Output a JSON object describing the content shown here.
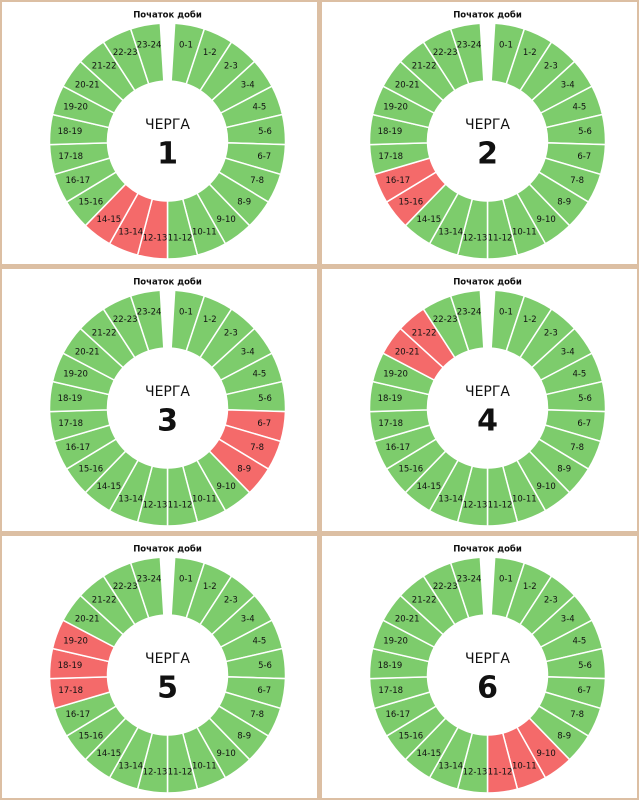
{
  "chart_data": [
    {
      "type": "donut",
      "top_label": "Початок доби",
      "title": "ЧЕРГА",
      "number": 1,
      "categories": [
        "0-1",
        "1-2",
        "2-3",
        "3-4",
        "4-5",
        "5-6",
        "6-7",
        "7-8",
        "8-9",
        "9-10",
        "10-11",
        "11-12",
        "12-13",
        "13-14",
        "14-15",
        "15-16",
        "16-17",
        "17-18",
        "18-19",
        "19-20",
        "20-21",
        "21-22",
        "22-23",
        "23-24"
      ],
      "values": [
        1,
        1,
        1,
        1,
        1,
        1,
        1,
        1,
        1,
        1,
        1,
        1,
        1,
        1,
        1,
        1,
        1,
        1,
        1,
        1,
        1,
        1,
        1,
        1
      ],
      "colors": [
        "#7dcc6c",
        "#7dcc6c",
        "#7dcc6c",
        "#7dcc6c",
        "#7dcc6c",
        "#7dcc6c",
        "#7dcc6c",
        "#7dcc6c",
        "#7dcc6c",
        "#7dcc6c",
        "#7dcc6c",
        "#7dcc6c",
        "#f46a6a",
        "#f46a6a",
        "#f46a6a",
        "#7dcc6c",
        "#7dcc6c",
        "#7dcc6c",
        "#7dcc6c",
        "#7dcc6c",
        "#7dcc6c",
        "#7dcc6c",
        "#7dcc6c",
        "#7dcc6c"
      ]
    },
    {
      "type": "donut",
      "top_label": "Початок доби",
      "title": "ЧЕРГА",
      "number": 2,
      "categories": [
        "0-1",
        "1-2",
        "2-3",
        "3-4",
        "4-5",
        "5-6",
        "6-7",
        "7-8",
        "8-9",
        "9-10",
        "10-11",
        "11-12",
        "12-13",
        "13-14",
        "14-15",
        "15-16",
        "16-17",
        "17-18",
        "18-19",
        "19-20",
        "20-21",
        "21-22",
        "22-23",
        "23-24"
      ],
      "values": [
        1,
        1,
        1,
        1,
        1,
        1,
        1,
        1,
        1,
        1,
        1,
        1,
        1,
        1,
        1,
        1,
        1,
        1,
        1,
        1,
        1,
        1,
        1,
        1
      ],
      "colors": [
        "#7dcc6c",
        "#7dcc6c",
        "#7dcc6c",
        "#7dcc6c",
        "#7dcc6c",
        "#7dcc6c",
        "#7dcc6c",
        "#7dcc6c",
        "#7dcc6c",
        "#7dcc6c",
        "#7dcc6c",
        "#7dcc6c",
        "#7dcc6c",
        "#7dcc6c",
        "#7dcc6c",
        "#f46a6a",
        "#f46a6a",
        "#7dcc6c",
        "#7dcc6c",
        "#7dcc6c",
        "#7dcc6c",
        "#7dcc6c",
        "#7dcc6c",
        "#7dcc6c"
      ]
    },
    {
      "type": "donut",
      "top_label": "Початок доби",
      "title": "ЧЕРГА",
      "number": 3,
      "categories": [
        "0-1",
        "1-2",
        "2-3",
        "3-4",
        "4-5",
        "5-6",
        "6-7",
        "7-8",
        "8-9",
        "9-10",
        "10-11",
        "11-12",
        "12-13",
        "13-14",
        "14-15",
        "15-16",
        "16-17",
        "17-18",
        "18-19",
        "19-20",
        "20-21",
        "21-22",
        "22-23",
        "23-24"
      ],
      "values": [
        1,
        1,
        1,
        1,
        1,
        1,
        1,
        1,
        1,
        1,
        1,
        1,
        1,
        1,
        1,
        1,
        1,
        1,
        1,
        1,
        1,
        1,
        1,
        1
      ],
      "colors": [
        "#7dcc6c",
        "#7dcc6c",
        "#7dcc6c",
        "#7dcc6c",
        "#7dcc6c",
        "#7dcc6c",
        "#f46a6a",
        "#f46a6a",
        "#f46a6a",
        "#7dcc6c",
        "#7dcc6c",
        "#7dcc6c",
        "#7dcc6c",
        "#7dcc6c",
        "#7dcc6c",
        "#7dcc6c",
        "#7dcc6c",
        "#7dcc6c",
        "#7dcc6c",
        "#7dcc6c",
        "#7dcc6c",
        "#7dcc6c",
        "#7dcc6c",
        "#7dcc6c"
      ]
    },
    {
      "type": "donut",
      "top_label": "Початок доби",
      "title": "ЧЕРГА",
      "number": 4,
      "categories": [
        "0-1",
        "1-2",
        "2-3",
        "3-4",
        "4-5",
        "5-6",
        "6-7",
        "7-8",
        "8-9",
        "9-10",
        "10-11",
        "11-12",
        "12-13",
        "13-14",
        "14-15",
        "15-16",
        "16-17",
        "17-18",
        "18-19",
        "19-20",
        "20-21",
        "21-22",
        "22-23",
        "23-24"
      ],
      "values": [
        1,
        1,
        1,
        1,
        1,
        1,
        1,
        1,
        1,
        1,
        1,
        1,
        1,
        1,
        1,
        1,
        1,
        1,
        1,
        1,
        1,
        1,
        1,
        1
      ],
      "colors": [
        "#7dcc6c",
        "#7dcc6c",
        "#7dcc6c",
        "#7dcc6c",
        "#7dcc6c",
        "#7dcc6c",
        "#7dcc6c",
        "#7dcc6c",
        "#7dcc6c",
        "#7dcc6c",
        "#7dcc6c",
        "#7dcc6c",
        "#7dcc6c",
        "#7dcc6c",
        "#7dcc6c",
        "#7dcc6c",
        "#7dcc6c",
        "#7dcc6c",
        "#7dcc6c",
        "#7dcc6c",
        "#f46a6a",
        "#f46a6a",
        "#7dcc6c",
        "#7dcc6c"
      ]
    },
    {
      "type": "donut",
      "top_label": "Початок доби",
      "title": "ЧЕРГА",
      "number": 5,
      "categories": [
        "0-1",
        "1-2",
        "2-3",
        "3-4",
        "4-5",
        "5-6",
        "6-7",
        "7-8",
        "8-9",
        "9-10",
        "10-11",
        "11-12",
        "12-13",
        "13-14",
        "14-15",
        "15-16",
        "16-17",
        "17-18",
        "18-19",
        "19-20",
        "20-21",
        "21-22",
        "22-23",
        "23-24"
      ],
      "values": [
        1,
        1,
        1,
        1,
        1,
        1,
        1,
        1,
        1,
        1,
        1,
        1,
        1,
        1,
        1,
        1,
        1,
        1,
        1,
        1,
        1,
        1,
        1,
        1
      ],
      "colors": [
        "#7dcc6c",
        "#7dcc6c",
        "#7dcc6c",
        "#7dcc6c",
        "#7dcc6c",
        "#7dcc6c",
        "#7dcc6c",
        "#7dcc6c",
        "#7dcc6c",
        "#7dcc6c",
        "#7dcc6c",
        "#7dcc6c",
        "#7dcc6c",
        "#7dcc6c",
        "#7dcc6c",
        "#7dcc6c",
        "#7dcc6c",
        "#f46a6a",
        "#f46a6a",
        "#f46a6a",
        "#7dcc6c",
        "#7dcc6c",
        "#7dcc6c",
        "#7dcc6c"
      ]
    },
    {
      "type": "donut",
      "top_label": "Початок доби",
      "title": "ЧЕРГА",
      "number": 6,
      "categories": [
        "0-1",
        "1-2",
        "2-3",
        "3-4",
        "4-5",
        "5-6",
        "6-7",
        "7-8",
        "8-9",
        "9-10",
        "10-11",
        "11-12",
        "12-13",
        "13-14",
        "14-15",
        "15-16",
        "16-17",
        "17-18",
        "18-19",
        "19-20",
        "20-21",
        "21-22",
        "22-23",
        "23-24"
      ],
      "values": [
        1,
        1,
        1,
        1,
        1,
        1,
        1,
        1,
        1,
        1,
        1,
        1,
        1,
        1,
        1,
        1,
        1,
        1,
        1,
        1,
        1,
        1,
        1,
        1
      ],
      "colors": [
        "#7dcc6c",
        "#7dcc6c",
        "#7dcc6c",
        "#7dcc6c",
        "#7dcc6c",
        "#7dcc6c",
        "#7dcc6c",
        "#7dcc6c",
        "#7dcc6c",
        "#f46a6a",
        "#f46a6a",
        "#f46a6a",
        "#7dcc6c",
        "#7dcc6c",
        "#7dcc6c",
        "#7dcc6c",
        "#7dcc6c",
        "#7dcc6c",
        "#7dcc6c",
        "#7dcc6c",
        "#7dcc6c",
        "#7dcc6c",
        "#7dcc6c",
        "#7dcc6c"
      ]
    }
  ]
}
